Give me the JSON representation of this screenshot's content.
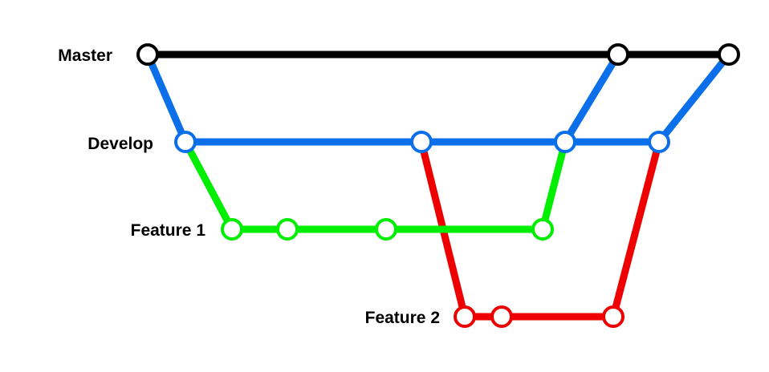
{
  "branches": {
    "master": {
      "label": "Master",
      "color": "#000000"
    },
    "develop": {
      "label": "Develop",
      "color": "#0a6fe8"
    },
    "feature1": {
      "label": "Feature 1",
      "color": "#00ee00"
    },
    "feature2": {
      "label": "Feature 2",
      "color": "#ee0000"
    }
  }
}
